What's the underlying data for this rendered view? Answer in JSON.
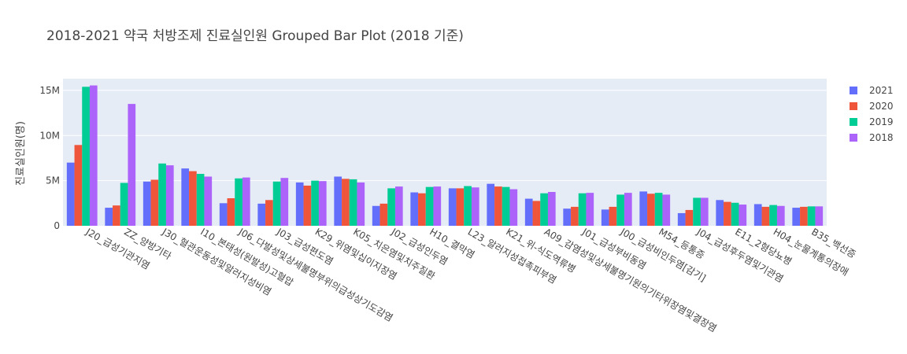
{
  "chart_data": {
    "type": "bar",
    "title": "2018-2021 약국 처방조제 진료실인원 Grouped Bar Plot (2018 기준)",
    "xlabel": "",
    "ylabel": "진료실인원(명)",
    "ylim": [
      0,
      16300000
    ],
    "yticks": [
      0,
      5000000,
      10000000,
      15000000
    ],
    "ytick_labels": [
      "0",
      "5M",
      "10M",
      "15M"
    ],
    "grid": true,
    "legend_position": "top-right",
    "categories": [
      "J20_급성기관지염",
      "ZZ_양방기타",
      "J30_혈관운동성및알러지성비염",
      "I10_본태성(원발성)고혈압",
      "J06_다발성및상세불명부위의급성상기도감염",
      "J03_급성편도염",
      "K29_위염및십이지장염",
      "K05_치은염및치주질환",
      "J02_급성인두염",
      "H10_결막염",
      "L23_알러지성접촉피부염",
      "K21_위-식도역류병",
      "A09_감염성및상세불명기원의기타위장염및결장염",
      "J01_급성부비동염",
      "J00_급성비인두염[감기]",
      "M54_등통증",
      "J04_급성후두염및기관염",
      "E11_2형당뇨병",
      "H04_눈물계통의장애",
      "B35_백선증"
    ],
    "series": [
      {
        "name": "2021",
        "color": "#636efa",
        "values": [
          7000000,
          2000000,
          4900000,
          6350000,
          2500000,
          2450000,
          4800000,
          5450000,
          2200000,
          3700000,
          4150000,
          4650000,
          3000000,
          1900000,
          1800000,
          3800000,
          1400000,
          2850000,
          2400000,
          2000000
        ]
      },
      {
        "name": "2020",
        "color": "#ef553b",
        "values": [
          8950000,
          2250000,
          5100000,
          6050000,
          3050000,
          2850000,
          4450000,
          5200000,
          2450000,
          3600000,
          4150000,
          4350000,
          2750000,
          2100000,
          2100000,
          3550000,
          1750000,
          2650000,
          2100000,
          2100000
        ]
      },
      {
        "name": "2019",
        "color": "#00cc96",
        "values": [
          15400000,
          4750000,
          6900000,
          5750000,
          5250000,
          4900000,
          5000000,
          5150000,
          4150000,
          4300000,
          4400000,
          4300000,
          3600000,
          3600000,
          3450000,
          3650000,
          3100000,
          2550000,
          2300000,
          2150000
        ]
      },
      {
        "name": "2018",
        "color": "#ab63fa",
        "values": [
          15550000,
          13500000,
          6700000,
          5450000,
          5350000,
          5300000,
          4950000,
          4800000,
          4350000,
          4350000,
          4250000,
          4050000,
          3750000,
          3650000,
          3650000,
          3450000,
          3100000,
          2350000,
          2200000,
          2150000
        ]
      }
    ],
    "legend_order": [
      "2021",
      "2020",
      "2019",
      "2018"
    ]
  }
}
